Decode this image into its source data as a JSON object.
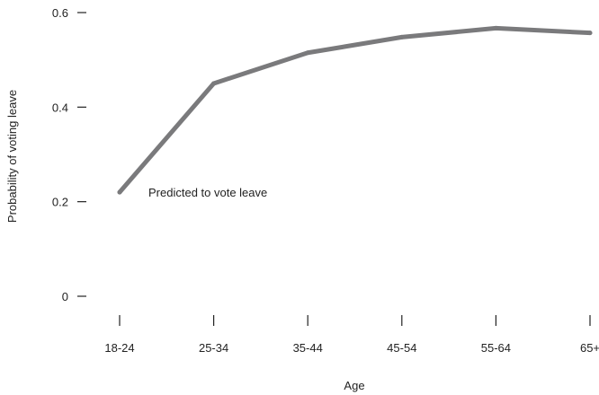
{
  "chart_data": {
    "type": "line",
    "categories": [
      "18-24",
      "25-34",
      "35-44",
      "45-54",
      "55-64",
      "65+"
    ],
    "series": [
      {
        "values": [
          0.22,
          0.45,
          0.515,
          0.548,
          0.567,
          0.557
        ],
        "color": "#7a7a7c"
      }
    ],
    "xlabel": "Age",
    "ylabel": "Probability of voting leave",
    "ylim": [
      0,
      0.6
    ],
    "yticks": [
      0,
      0.2,
      0.4,
      0.6
    ],
    "ytick_labels": [
      "0",
      "0.2",
      "0.4",
      "0.6"
    ],
    "annotation": "Predicted to vote leave",
    "grid": false
  }
}
